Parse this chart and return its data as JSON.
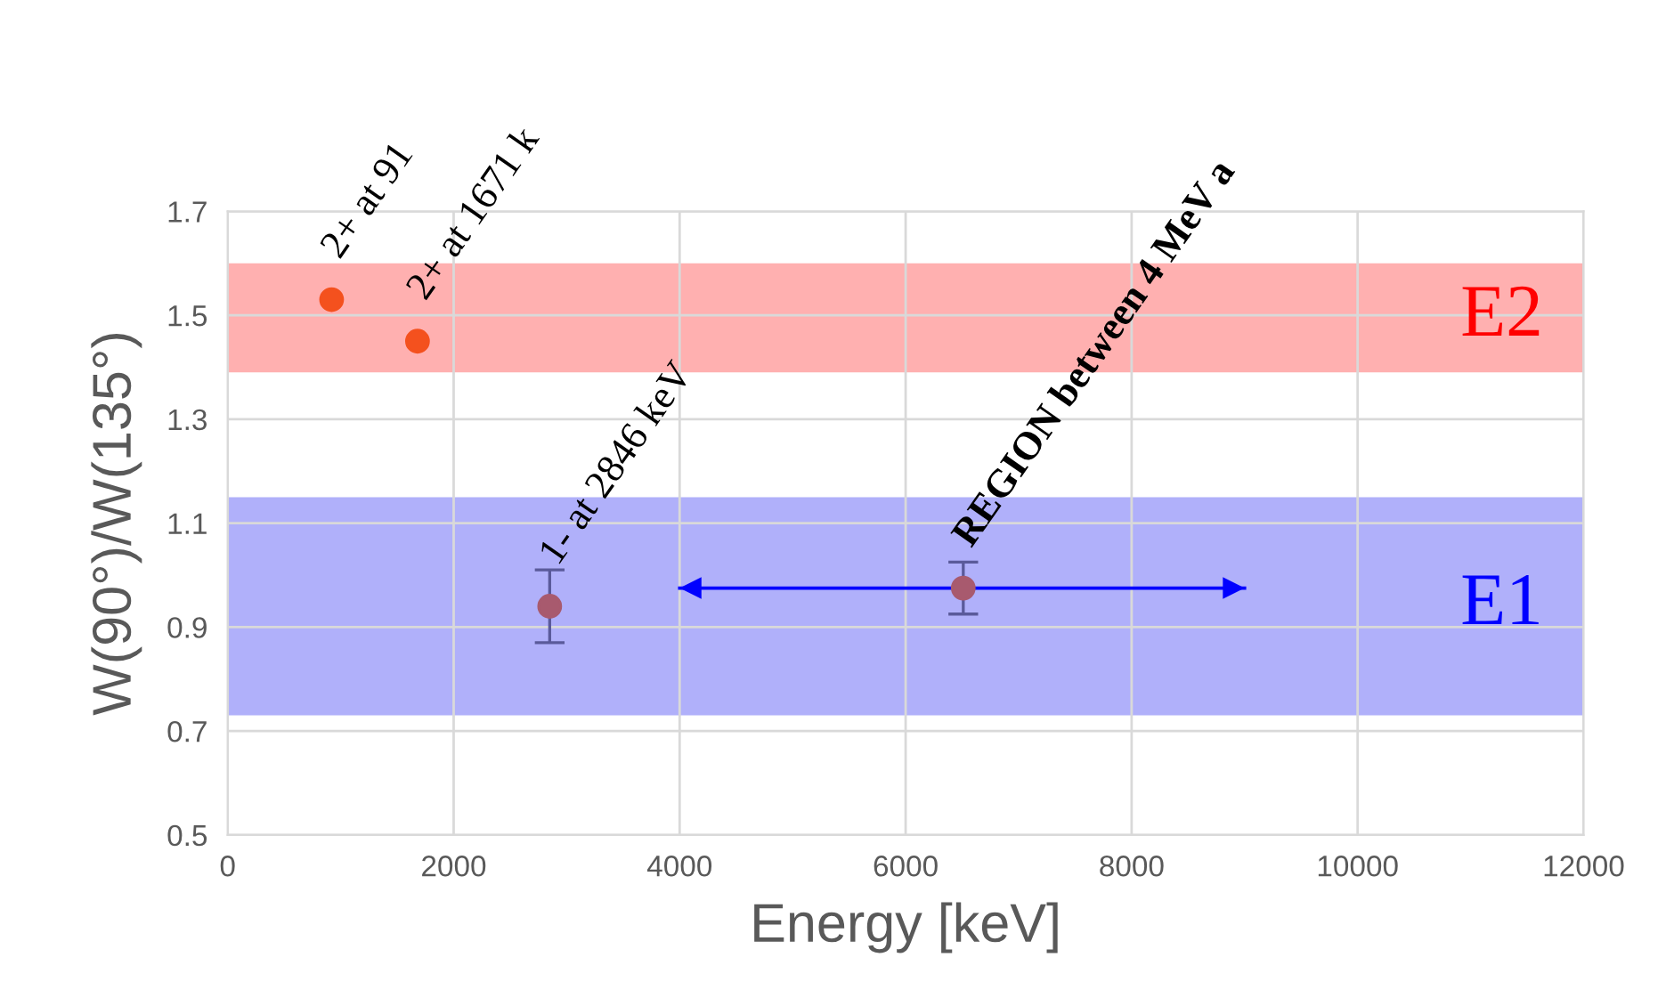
{
  "chart_data": {
    "type": "scatter",
    "xlabel": "Energy [keV]",
    "ylabel": "W(90°)/W(135°)",
    "xlim": [
      0,
      12000
    ],
    "xticks": [
      0,
      2000,
      4000,
      6000,
      8000,
      10000,
      12000
    ],
    "ylim": [
      0.5,
      1.7
    ],
    "yticks": [
      0.5,
      0.7,
      0.9,
      1.1,
      1.3,
      1.5,
      1.7
    ],
    "grid": true,
    "marker": "circle",
    "series": [
      {
        "color": "#f4511e",
        "x": [
          920,
          1680
        ],
        "values": [
          1.53,
          1.45
        ]
      },
      {
        "color": "#a85a6e",
        "x": [
          2850,
          6510
        ],
        "values": [
          0.94,
          0.975
        ],
        "errors": [
          0.07,
          0.05
        ]
      },
      {
        "type": "line",
        "marker": "none",
        "color": "#0000ff",
        "x": [
          4000,
          9000
        ],
        "values": [
          0.975,
          0.975
        ]
      }
    ],
    "bands": [
      {
        "axis": "y",
        "from": 1.39,
        "to": 1.6,
        "label": "E2",
        "color": "#ffb0b0"
      },
      {
        "axis": "y",
        "from": 0.73,
        "to": 1.15,
        "label": "E1",
        "color": "#b0b0fa"
      }
    ],
    "annotations": [
      {
        "text": "2+ at 91",
        "x": 920,
        "y": 1.53
      },
      {
        "text": "2+ at 1671 k",
        "x": 1680,
        "y": 1.45
      },
      {
        "text": "1- at 2846 keV",
        "x": 2850,
        "y": 0.94
      },
      {
        "text": "REGION between 4 MeV a",
        "x": 6510,
        "y": 0.975
      }
    ]
  }
}
